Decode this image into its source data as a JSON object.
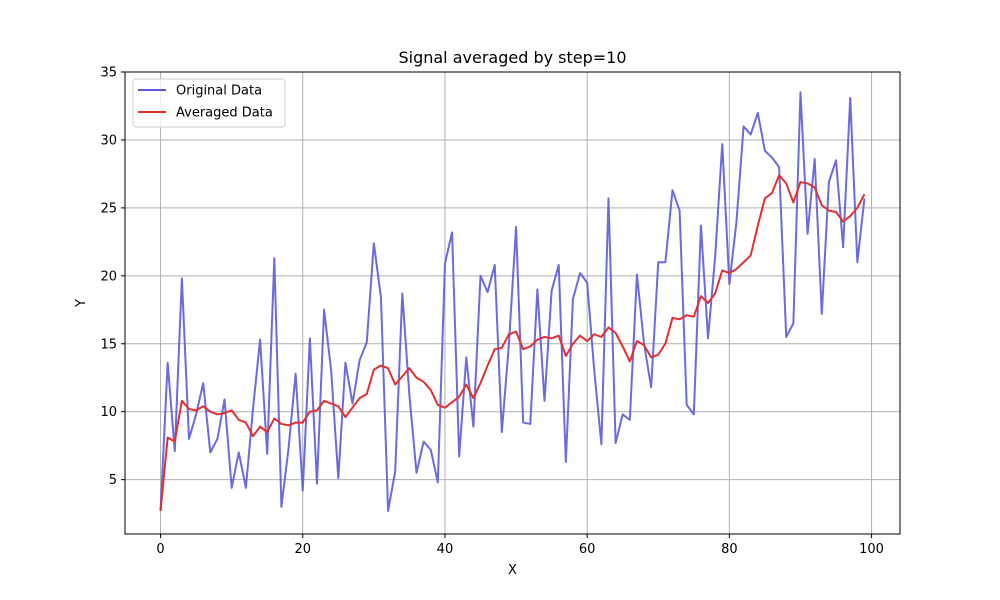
{
  "chart_data": {
    "type": "line",
    "title": "Signal averaged by step=10",
    "xlabel": "X",
    "ylabel": "Y",
    "xlim": [
      -5,
      104
    ],
    "ylim": [
      1,
      35
    ],
    "xticks": [
      0,
      20,
      40,
      60,
      80,
      100
    ],
    "yticks": [
      5,
      10,
      15,
      20,
      25,
      30,
      35
    ],
    "grid": true,
    "legend": "top-left",
    "x": [
      0,
      1,
      2,
      3,
      4,
      5,
      6,
      7,
      8,
      9,
      10,
      11,
      12,
      13,
      14,
      15,
      16,
      17,
      18,
      19,
      20,
      21,
      22,
      23,
      24,
      25,
      26,
      27,
      28,
      29,
      30,
      31,
      32,
      33,
      34,
      35,
      36,
      37,
      38,
      39,
      40,
      41,
      42,
      43,
      44,
      45,
      46,
      47,
      48,
      49,
      50,
      51,
      52,
      53,
      54,
      55,
      56,
      57,
      58,
      59,
      60,
      61,
      62,
      63,
      64,
      65,
      66,
      67,
      68,
      69,
      70,
      71,
      72,
      73,
      74,
      75,
      76,
      77,
      78,
      79,
      80,
      81,
      82,
      83,
      84,
      85,
      86,
      87,
      88,
      89,
      90,
      91,
      92,
      93,
      94,
      95,
      96,
      97,
      98,
      99
    ],
    "series": [
      {
        "name": "Original Data",
        "color": "#5b5bdb",
        "values": [
          2.7,
          13.6,
          7.1,
          19.8,
          8.0,
          9.8,
          12.1,
          7.0,
          8.0,
          10.9,
          4.4,
          7.0,
          4.4,
          10.2,
          15.3,
          6.9,
          21.3,
          3.0,
          7.3,
          12.8,
          4.2,
          15.4,
          4.7,
          17.5,
          13.0,
          5.1,
          13.6,
          10.6,
          13.8,
          15.1,
          22.4,
          18.4,
          2.7,
          5.6,
          18.7,
          11.2,
          5.5,
          7.8,
          7.2,
          4.8,
          20.9,
          23.2,
          6.7,
          14.0,
          8.9,
          20.0,
          18.8,
          20.8,
          8.5,
          15.0,
          23.6,
          9.2,
          9.1,
          19.0,
          10.8,
          18.9,
          20.8,
          6.3,
          18.3,
          20.2,
          19.5,
          13.0,
          7.6,
          25.7,
          7.7,
          9.8,
          9.4,
          20.1,
          15.0,
          11.8,
          21.0,
          21.0,
          26.3,
          24.8,
          10.5,
          9.8,
          23.7,
          15.4,
          21.4,
          29.7,
          19.4,
          24.0,
          31.0,
          30.4,
          32.0,
          29.2,
          28.7,
          28.0,
          15.5,
          16.5,
          33.5,
          23.1,
          28.6,
          17.2,
          26.9,
          28.5,
          22.1,
          33.1,
          21.0,
          25.7
        ]
      },
      {
        "name": "Averaged Data",
        "color": "#e03030",
        "values": [
          2.7,
          8.1,
          7.8,
          10.8,
          10.2,
          10.1,
          10.4,
          10.0,
          9.8,
          9.9,
          10.1,
          9.4,
          9.2,
          8.2,
          8.9,
          8.5,
          9.5,
          9.1,
          9.0,
          9.2,
          9.2,
          10.0,
          10.1,
          10.8,
          10.6,
          10.4,
          9.6,
          10.3,
          11.0,
          11.3,
          13.1,
          13.4,
          13.2,
          12.0,
          12.6,
          13.2,
          12.5,
          12.2,
          11.6,
          10.5,
          10.3,
          10.7,
          11.1,
          12.0,
          11.0,
          12.1,
          13.4,
          14.6,
          14.7,
          15.7,
          15.9,
          14.6,
          14.8,
          15.3,
          15.5,
          15.4,
          15.6,
          14.1,
          15.0,
          15.6,
          15.2,
          15.7,
          15.5,
          16.2,
          15.8,
          14.8,
          13.7,
          15.2,
          14.9,
          14.0,
          14.2,
          15.0,
          16.9,
          16.8,
          17.1,
          17.0,
          18.5,
          18.0,
          18.7,
          20.4,
          20.2,
          20.5,
          21.0,
          21.5,
          23.7,
          25.7,
          26.1,
          27.4,
          26.8,
          25.4,
          26.9,
          26.8,
          26.5,
          25.2,
          24.8,
          24.7,
          24.0,
          24.4,
          25.0,
          26.0
        ]
      }
    ]
  }
}
